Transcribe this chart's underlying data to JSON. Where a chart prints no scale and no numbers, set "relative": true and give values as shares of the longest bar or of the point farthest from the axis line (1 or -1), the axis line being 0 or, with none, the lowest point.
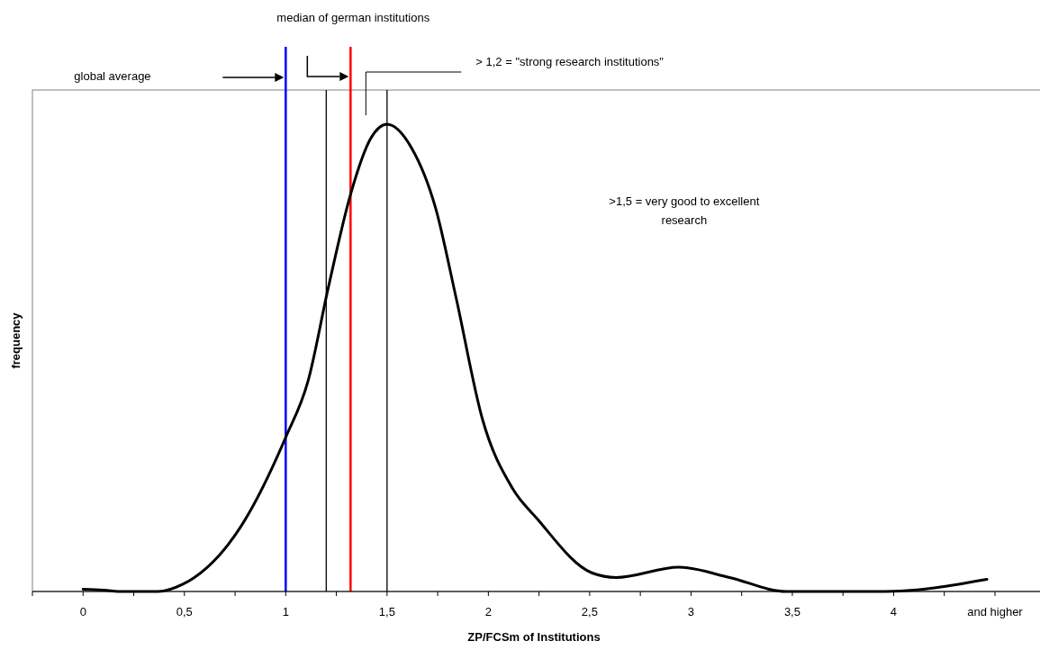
{
  "chart_data": {
    "type": "line",
    "xlabel": "ZP/FCSm of Institutions",
    "ylabel": "frequency",
    "relative": true,
    "xlim": [
      -0.25,
      4.7
    ],
    "xticks": [
      {
        "value": -0.25,
        "label": null
      },
      0,
      {
        "value": 0.25,
        "label": null
      },
      {
        "value": 0.5,
        "label": "0,5"
      },
      {
        "value": 0.75,
        "label": null
      },
      1,
      {
        "value": 1.25,
        "label": null
      },
      {
        "value": 1.5,
        "label": "1,5"
      },
      {
        "value": 1.75,
        "label": null
      },
      2,
      {
        "value": 2.25,
        "label": null
      },
      {
        "value": 2.5,
        "label": "2,5"
      },
      {
        "value": 2.75,
        "label": null
      },
      3,
      {
        "value": 3.25,
        "label": null
      },
      {
        "value": 3.5,
        "label": "3,5"
      },
      {
        "value": 3.75,
        "label": null
      },
      4,
      {
        "value": 4.25,
        "label": null
      },
      {
        "value": 4.5,
        "label": "and higher"
      }
    ],
    "series": [
      {
        "color": "#000000",
        "x": [
          0,
          0.1,
          0.2,
          0.37,
          0.49,
          0.78,
          1.0,
          1.11,
          1.21,
          1.32,
          1.42,
          1.5,
          1.62,
          1.74,
          1.84,
          1.97,
          2.12,
          2.24,
          2.51,
          2.63,
          2.94,
          3.19,
          3.47,
          3.96,
          4.46
        ],
        "values": [
          0.005,
          0.003,
          0,
          0,
          0.015,
          0.14,
          0.33,
          0.45,
          0.65,
          0.85,
          0.97,
          1,
          0.95,
          0.82,
          0.63,
          0.37,
          0.22,
          0.156,
          0.04,
          0.03,
          0.052,
          0.03,
          0,
          0,
          0.026
        ]
      }
    ],
    "ref_lines": [
      {
        "axis": "x",
        "value": 1,
        "color": "#0000ff"
      },
      {
        "axis": "x",
        "value": 1.32,
        "color": "#ff0000"
      },
      {
        "axis": "x",
        "value": 1.2,
        "color": "#000000"
      },
      {
        "axis": "x",
        "value": 1.5,
        "color": "#000000"
      }
    ],
    "annotations": [
      "global average",
      "median of german institutions",
      "> 1,2 = \"strong research institutions\"",
      ">1,5 = very good to excellent research"
    ],
    "grid": false
  }
}
